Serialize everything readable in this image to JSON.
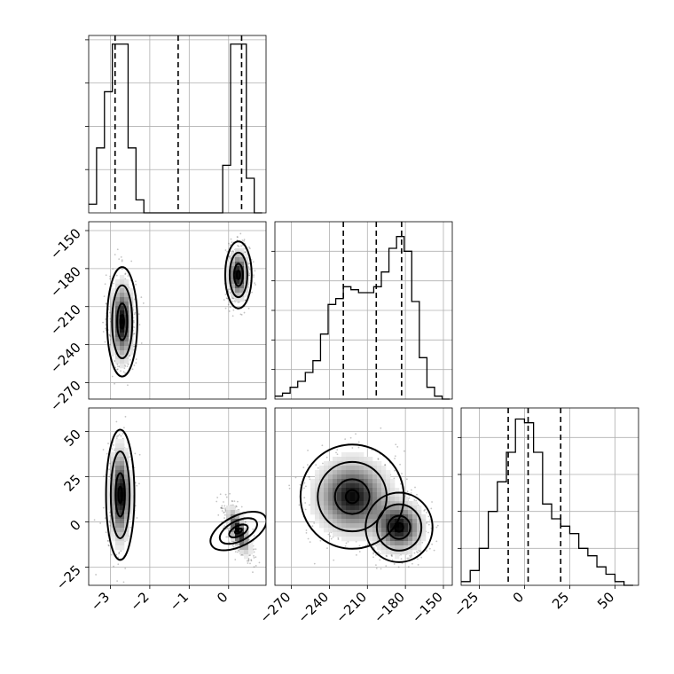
{
  "chart_data": {
    "type": "corner",
    "parameters": [
      {
        "range": [
          -3.55,
          0.95
        ],
        "ticks": [
          -3,
          -2,
          -1,
          0
        ],
        "tick_labels": [
          "−3",
          "−2",
          "−1",
          "0"
        ]
      },
      {
        "range": [
          -283,
          -143
        ],
        "ticks": [
          -270,
          -240,
          -210,
          -180,
          -150
        ],
        "tick_labels": [
          "−270",
          "−240",
          "−210",
          "−180",
          "−150"
        ]
      },
      {
        "range": [
          -35,
          63
        ],
        "ticks": [
          -25,
          0,
          25,
          50
        ],
        "tick_labels": [
          "−25",
          "0",
          "25",
          "50"
        ]
      }
    ],
    "histograms": [
      {
        "bin_edges": [
          -3.55,
          -3.35,
          -3.15,
          -2.95,
          -2.75,
          -2.55,
          -2.35,
          -2.15,
          -1.95,
          -1.75,
          -1.55,
          -1.35,
          -1.15,
          -0.95,
          -0.75,
          -0.55,
          -0.35,
          -0.15,
          0.05,
          0.25,
          0.45,
          0.65,
          0.85
        ],
        "counts": [
          2,
          15,
          28,
          39,
          39,
          15,
          3,
          0,
          0,
          0,
          0,
          0,
          0,
          0,
          0,
          0,
          0,
          11,
          39,
          39,
          8,
          0
        ],
        "quantiles": [
          -2.88,
          -1.28,
          0.33
        ],
        "ylim": [
          0,
          41
        ],
        "yticks": [
          10,
          20,
          30,
          40
        ]
      },
      {
        "bin_edges": [
          -283,
          -277,
          -271,
          -265,
          -259,
          -253,
          -247,
          -241,
          -235,
          -229,
          -223,
          -217,
          -211,
          -205,
          -199,
          -193,
          -187,
          -181,
          -175,
          -169,
          -163,
          -157,
          -151,
          -145
        ],
        "counts": [
          1,
          2,
          4,
          6,
          9,
          13,
          22,
          32,
          34,
          38,
          37,
          36,
          36,
          38,
          43,
          51,
          55,
          50,
          33,
          14,
          4,
          1,
          0
        ],
        "quantiles": [
          -229,
          -203,
          -183
        ],
        "ylim": [
          0,
          60
        ],
        "yticks": [
          10,
          20,
          30,
          40,
          50
        ]
      },
      {
        "bin_edges": [
          -35,
          -30,
          -25,
          -20,
          -15,
          -10,
          -5,
          0,
          5,
          10,
          15,
          20,
          25,
          30,
          35,
          40,
          45,
          50,
          55,
          60
        ],
        "counts": [
          1,
          4,
          10,
          20,
          28,
          36,
          45,
          44,
          36,
          22,
          18,
          16,
          14,
          10,
          8,
          5,
          3,
          1,
          0
        ],
        "quantiles": [
          -9,
          2,
          20
        ],
        "ylim": [
          0,
          48
        ],
        "yticks": [
          10,
          20,
          30,
          40
        ]
      }
    ],
    "pairs": [
      {
        "x_param": 0,
        "y_param": 1,
        "clusters": [
          {
            "center": [
              -2.7,
              -222
            ],
            "sigma": [
              0.16,
              18
            ],
            "weight": 0.5,
            "tilt": 0
          },
          {
            "center": [
              0.25,
              -185
            ],
            "sigma": [
              0.14,
              11
            ],
            "weight": 0.5,
            "tilt": 0
          }
        ]
      },
      {
        "x_param": 0,
        "y_param": 2,
        "clusters": [
          {
            "center": [
              -2.75,
              15
            ],
            "sigma": [
              0.15,
              15
            ],
            "weight": 0.5,
            "tilt": 0
          },
          {
            "center": [
              0.25,
              -5
            ],
            "sigma": [
              0.16,
              7
            ],
            "weight": 0.5,
            "tilt": -0.65
          }
        ]
      },
      {
        "x_param": 1,
        "y_param": 2,
        "clusters": [
          {
            "center": [
              -222,
              14
            ],
            "sigma": [
              17,
              12
            ],
            "weight": 0.5,
            "tilt": 0
          },
          {
            "center": [
              -185,
              -3
            ],
            "sigma": [
              11,
              8
            ],
            "weight": 0.5,
            "tilt": 0
          }
        ]
      }
    ],
    "grid": true,
    "n_scatter_points": 1300
  }
}
